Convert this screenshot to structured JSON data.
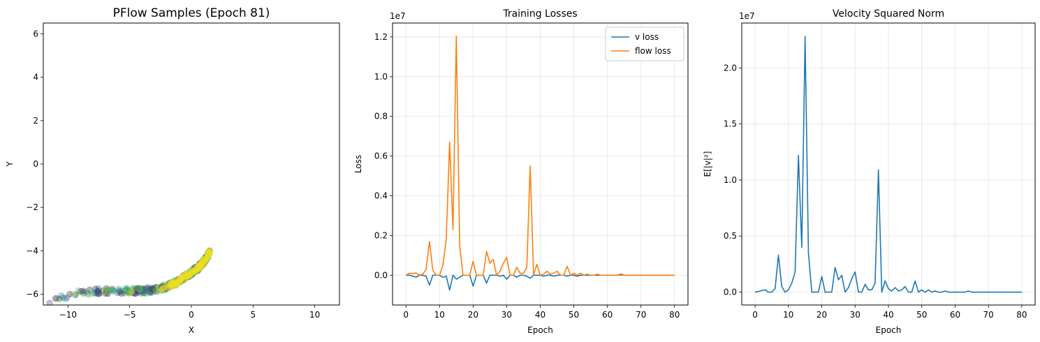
{
  "colors": {
    "blue": "#1f77b4",
    "orange": "#ff7f0e"
  },
  "chart_data": [
    {
      "type": "scatter",
      "title": "PFlow Samples (Epoch 81)",
      "xlabel": "X",
      "ylabel": "Y",
      "xlim": [
        -12,
        12
      ],
      "ylim": [
        -6.5,
        6.5
      ],
      "xticks": [
        -10,
        -5,
        0,
        5,
        10
      ],
      "xtick_labels": [
        "−10",
        "−5",
        "0",
        "5",
        "10"
      ],
      "yticks": [
        -6,
        -4,
        -2,
        0,
        2,
        4,
        6
      ],
      "ytick_labels": [
        "−6",
        "−4",
        "−2",
        "0",
        "2",
        "4",
        "6"
      ],
      "grid": false,
      "colormap": "viridis",
      "curve": {
        "x": [
          -12,
          -11,
          -10,
          -9,
          -8,
          -7,
          -6,
          -5,
          -4,
          -3,
          -2,
          -1,
          -0.5,
          0,
          0.5,
          1,
          1.3,
          1.5
        ],
        "y": [
          -6.35,
          -6.2,
          -6.05,
          -5.95,
          -5.88,
          -5.85,
          -5.85,
          -5.85,
          -5.85,
          -5.8,
          -5.65,
          -5.4,
          -5.2,
          -5.0,
          -4.8,
          -4.5,
          -4.25,
          -4.05
        ]
      }
    },
    {
      "type": "line",
      "title": "Training Losses",
      "xlabel": "Epoch",
      "ylabel": "Loss",
      "scale_label": "1e7",
      "xlim": [
        -4,
        84
      ],
      "ylim": [
        -0.15,
        1.27
      ],
      "xticks": [
        0,
        10,
        20,
        30,
        40,
        50,
        60,
        70,
        80
      ],
      "xtick_labels": [
        "0",
        "10",
        "20",
        "30",
        "40",
        "50",
        "60",
        "70",
        "80"
      ],
      "yticks": [
        0,
        0.2,
        0.4,
        0.6,
        0.8,
        1.0,
        1.2
      ],
      "ytick_labels": [
        "0.0",
        "0.2",
        "0.4",
        "0.6",
        "0.8",
        "1.0",
        "1.2"
      ],
      "grid": true,
      "legend": "top-right",
      "x": [
        0,
        1,
        2,
        3,
        4,
        5,
        6,
        7,
        8,
        9,
        10,
        11,
        12,
        13,
        14,
        15,
        16,
        17,
        18,
        19,
        20,
        21,
        22,
        23,
        24,
        25,
        26,
        27,
        28,
        29,
        30,
        31,
        32,
        33,
        34,
        35,
        36,
        37,
        38,
        39,
        40,
        41,
        42,
        43,
        44,
        45,
        46,
        47,
        48,
        49,
        50,
        51,
        52,
        53,
        54,
        55,
        56,
        57,
        58,
        59,
        60,
        61,
        62,
        63,
        64,
        65,
        66,
        67,
        68,
        69,
        70,
        71,
        72,
        73,
        74,
        75,
        76,
        77,
        78,
        79,
        80
      ],
      "series": [
        {
          "name": "v loss",
          "color": "#1f77b4",
          "values": [
            0,
            0,
            -0.005,
            -0.01,
            0,
            0,
            -0.005,
            -0.05,
            0,
            0,
            0,
            -0.01,
            -0.005,
            -0.075,
            0,
            -0.02,
            -0.01,
            0,
            0,
            0,
            -0.055,
            0,
            0,
            0,
            -0.04,
            0,
            0,
            0,
            -0.005,
            0,
            -0.02,
            0,
            0,
            -0.01,
            0,
            0,
            -0.005,
            -0.015,
            0,
            0,
            0,
            -0.005,
            0,
            0,
            -0.005,
            0,
            0,
            0,
            -0.005,
            0,
            0,
            -0.005,
            0,
            0,
            0,
            0,
            0,
            0,
            0,
            0,
            0,
            0,
            0,
            0,
            0.005,
            0,
            0,
            0,
            0,
            0,
            0,
            0,
            0,
            0,
            0,
            0,
            0,
            0,
            0,
            0,
            0
          ]
        },
        {
          "name": "flow loss",
          "color": "#ff7f0e",
          "values": [
            0,
            0.01,
            0.008,
            0.012,
            0,
            0.005,
            0.03,
            0.17,
            0.025,
            0,
            0,
            0.05,
            0.18,
            0.67,
            0.23,
            1.205,
            0.15,
            0,
            0,
            0,
            0.07,
            0,
            0,
            0,
            0.12,
            0.06,
            0.08,
            0,
            0.02,
            0.06,
            0.09,
            0,
            0,
            0.04,
            0.01,
            0.01,
            0.04,
            0.55,
            0,
            0.055,
            0,
            0.005,
            0.02,
            0.005,
            0.01,
            0.02,
            0,
            0,
            0.045,
            0,
            0.01,
            0,
            0.01,
            0,
            0.005,
            0,
            0,
            0.005,
            0,
            0,
            0,
            0,
            0,
            0,
            0,
            0,
            0,
            0,
            0,
            0,
            0,
            0,
            0,
            0,
            0,
            0,
            0,
            0,
            0,
            0,
            0
          ]
        }
      ]
    },
    {
      "type": "line",
      "title": "Velocity Squared Norm",
      "xlabel": "Epoch",
      "ylabel": "E[|v|²]",
      "scale_label": "1e7",
      "xlim": [
        -4,
        84
      ],
      "ylim": [
        -0.115,
        2.4
      ],
      "xticks": [
        0,
        10,
        20,
        30,
        40,
        50,
        60,
        70,
        80
      ],
      "xtick_labels": [
        "0",
        "10",
        "20",
        "30",
        "40",
        "50",
        "60",
        "70",
        "80"
      ],
      "yticks": [
        0,
        0.5,
        1.0,
        1.5,
        2.0
      ],
      "ytick_labels": [
        "0.0",
        "0.5",
        "1.0",
        "1.5",
        "2.0"
      ],
      "grid": true,
      "x": [
        0,
        1,
        2,
        3,
        4,
        5,
        6,
        7,
        8,
        9,
        10,
        11,
        12,
        13,
        14,
        15,
        16,
        17,
        18,
        19,
        20,
        21,
        22,
        23,
        24,
        25,
        26,
        27,
        28,
        29,
        30,
        31,
        32,
        33,
        34,
        35,
        36,
        37,
        38,
        39,
        40,
        41,
        42,
        43,
        44,
        45,
        46,
        47,
        48,
        49,
        50,
        51,
        52,
        53,
        54,
        55,
        56,
        57,
        58,
        59,
        60,
        61,
        62,
        63,
        64,
        65,
        66,
        67,
        68,
        69,
        70,
        71,
        72,
        73,
        74,
        75,
        76,
        77,
        78,
        79,
        80
      ],
      "series": [
        {
          "color": "#1f77b4",
          "values": [
            0,
            0.005,
            0.015,
            0.02,
            0,
            0,
            0.03,
            0.33,
            0.05,
            0,
            0.02,
            0.08,
            0.18,
            1.22,
            0.4,
            2.28,
            0.35,
            0,
            0,
            0,
            0.14,
            0,
            0,
            0,
            0.22,
            0.11,
            0.15,
            0,
            0.04,
            0.12,
            0.18,
            0,
            0,
            0.07,
            0.02,
            0.02,
            0.08,
            1.09,
            0,
            0.1,
            0.03,
            0.01,
            0.04,
            0.01,
            0.02,
            0.05,
            0,
            0,
            0.1,
            0,
            0.02,
            0,
            0.02,
            0,
            0.01,
            0,
            0,
            0.01,
            0,
            0,
            0,
            0,
            0,
            0,
            0.01,
            0,
            0,
            0,
            0,
            0,
            0,
            0,
            0,
            0,
            0,
            0,
            0,
            0,
            0,
            0,
            0
          ]
        }
      ]
    }
  ]
}
